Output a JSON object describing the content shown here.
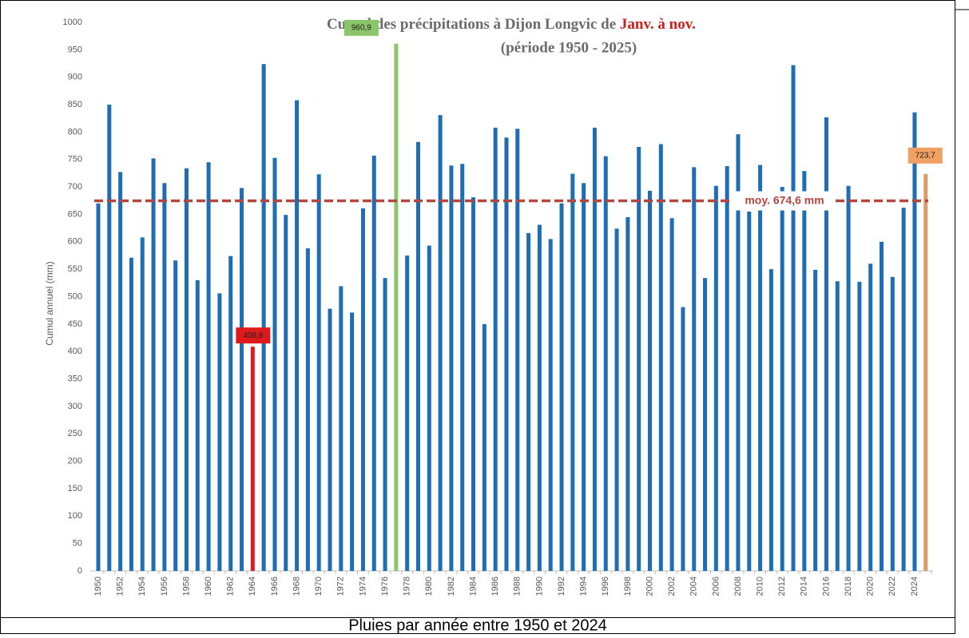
{
  "chart_data": {
    "type": "bar",
    "title": [
      "Cumul des précipitations à Dijon Longvic de ",
      "Janv. à nov."
    ],
    "subtitle": "(période 1950 - 2025)",
    "ylabel": "Cumul annuel (mm)",
    "caption": "Pluies par année entre 1950 et 2024",
    "categories": [
      "1950",
      null,
      "1952",
      null,
      "1954",
      null,
      "1956",
      null,
      "1958",
      null,
      "1960",
      null,
      "1962",
      null,
      "1964",
      null,
      "1966",
      null,
      "1968",
      null,
      "1970",
      null,
      "1972",
      null,
      "1974",
      null,
      "1976",
      null,
      "1978",
      null,
      "1980",
      null,
      "1982",
      null,
      "1984",
      null,
      "1986",
      null,
      "1988",
      null,
      "1990",
      null,
      "1992",
      null,
      "1994",
      null,
      "1996",
      null,
      "1998",
      null,
      "2000",
      null,
      "2002",
      null,
      "2004",
      null,
      "2006",
      null,
      "2008",
      null,
      "2010",
      null,
      "2012",
      null,
      "2014",
      null,
      "2016",
      null,
      "2018",
      null,
      "2020",
      null,
      "2022",
      null,
      "2024",
      null
    ],
    "values": [
      670,
      850,
      727,
      571,
      608,
      752,
      707,
      566,
      734,
      530,
      745,
      506,
      574,
      698,
      408.8,
      924,
      753,
      649,
      858,
      588,
      723,
      478,
      519,
      471,
      661,
      757,
      534,
      960.9,
      575,
      782,
      593,
      831,
      739,
      742,
      681,
      450,
      808,
      790,
      806,
      616,
      631,
      605,
      670,
      724,
      707,
      808,
      756,
      624,
      645,
      773,
      693,
      778,
      643,
      481,
      736,
      534,
      702,
      738,
      796,
      655,
      740,
      550,
      700,
      922,
      729,
      549,
      827,
      528,
      702,
      527,
      560,
      600,
      536,
      662,
      836,
      723.7
    ],
    "value_labels": [
      null,
      null,
      null,
      null,
      null,
      null,
      null,
      null,
      null,
      null,
      null,
      null,
      null,
      null,
      "408,8",
      null,
      null,
      null,
      null,
      null,
      null,
      null,
      null,
      null,
      null,
      null,
      null,
      "960,9",
      null,
      null,
      null,
      null,
      null,
      null,
      null,
      null,
      null,
      null,
      null,
      null,
      null,
      null,
      null,
      null,
      null,
      null,
      null,
      null,
      null,
      null,
      null,
      null,
      null,
      null,
      null,
      null,
      null,
      null,
      null,
      null,
      null,
      null,
      null,
      null,
      null,
      null,
      null,
      null,
      null,
      null,
      null,
      null,
      null,
      null,
      null,
      "723,7"
    ],
    "color": "#1f6db3",
    "highlight_colors": {
      "14": "#e0191b",
      "27": "#8cc46a",
      "75": "#d99a6c"
    },
    "label_colors": {
      "14": "#e0191b",
      "27": "#8cc46a",
      "75": "#f0a060"
    },
    "mean": 674.6,
    "mean_label": "moy. 674,6 mm",
    "mean_color": "#b5453f",
    "ylim": [
      0,
      1000
    ],
    "yticks": [
      0,
      50,
      100,
      150,
      200,
      250,
      300,
      350,
      400,
      450,
      500,
      550,
      600,
      650,
      700,
      750,
      800,
      850,
      900,
      950,
      1000
    ]
  }
}
